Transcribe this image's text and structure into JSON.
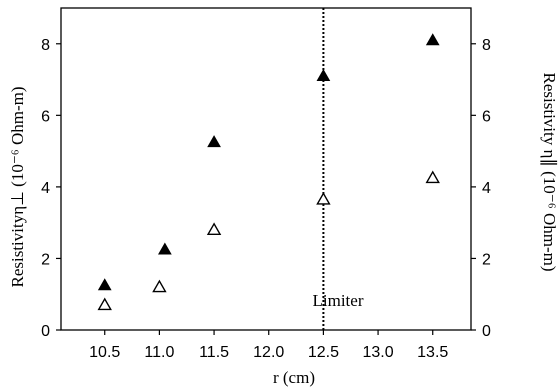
{
  "chart_data": {
    "type": "scatter",
    "xlabel": "r (cm)",
    "ylabel_left": "Resistivityη⊥ (10⁻⁶ Ohm-m)",
    "ylabel_right": "Resistivity η∥ (10⁻⁶ Ohm-m)",
    "xlim": [
      10.1,
      13.85
    ],
    "ylim": [
      0,
      9
    ],
    "xticks": [
      "10.5",
      "11.0",
      "11.5",
      "12.0",
      "12.5",
      "13.0",
      "13.5"
    ],
    "yticks": [
      "0",
      "2",
      "4",
      "6",
      "8"
    ],
    "series": [
      {
        "marker": "filled-triangle",
        "color": "#000000",
        "x": [
          10.5,
          11.05,
          11.5,
          12.5,
          13.5
        ],
        "y": [
          1.25,
          2.25,
          5.25,
          7.1,
          8.1
        ]
      },
      {
        "marker": "open-triangle",
        "color": "#000000",
        "x": [
          10.5,
          11.0,
          11.5,
          12.5,
          13.5
        ],
        "y": [
          0.7,
          1.2,
          2.8,
          3.65,
          4.25
        ]
      }
    ],
    "vline": {
      "x": 12.5,
      "style": "dotted",
      "label": "Limiter"
    },
    "grid": false
  }
}
